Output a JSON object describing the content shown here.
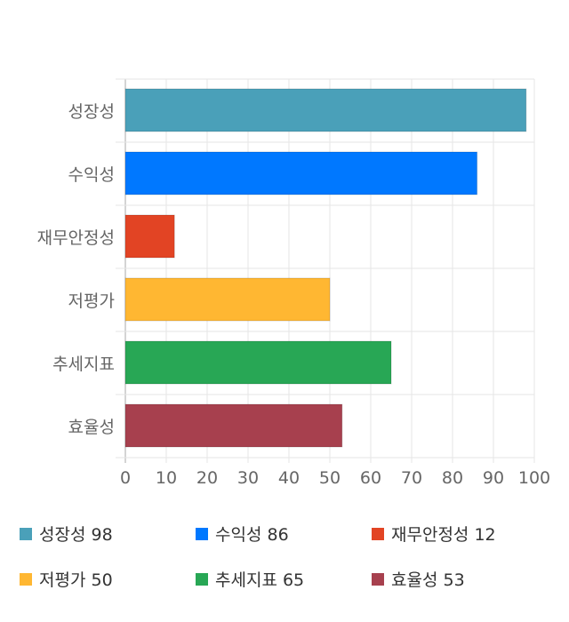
{
  "chart_data": {
    "type": "bar",
    "orientation": "horizontal",
    "categories": [
      "성장성",
      "수익성",
      "재무안정성",
      "저평가",
      "추세지표",
      "효율성"
    ],
    "values": [
      98,
      86,
      12,
      50,
      65,
      53
    ],
    "colors": [
      "#4aa0b9",
      "#0078ff",
      "#e24424",
      "#ffb732",
      "#28a755",
      "#a7404e"
    ],
    "xlim": [
      0,
      100
    ],
    "xticks": [
      "0",
      "10",
      "20",
      "30",
      "40",
      "50",
      "60",
      "70",
      "80",
      "90",
      "100"
    ],
    "grid": true,
    "legend_position": "bottom"
  },
  "legend": [
    {
      "label": "성장성 98"
    },
    {
      "label": "수익성 86"
    },
    {
      "label": "재무안정성 12"
    },
    {
      "label": "저평가 50"
    },
    {
      "label": "추세지표 65"
    },
    {
      "label": "효율성 53"
    }
  ]
}
